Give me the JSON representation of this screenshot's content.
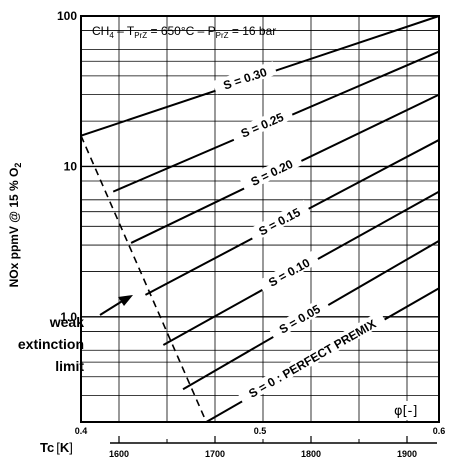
{
  "chart_data": {
    "type": "line",
    "title": "CH₄ – T_PrZ = 650°C – P_PrZ = 16 bar",
    "title_parts": {
      "ch4": "CH",
      "ch4_sub": "4",
      "t": " – T",
      "t_sub": "PrZ",
      "t_val": " = 650°C – P",
      "p_sub": "PrZ",
      "p_val": " = 16 bar"
    },
    "ylabel": "NOx ppmV @ 15 % O",
    "ylabel_sub": "2",
    "xlabel": "φ[-]",
    "x2label": "Tc",
    "x2label_unit": "K",
    "y_scale": "log",
    "ylim": [
      0.2,
      100
    ],
    "xlim": [
      0.4,
      0.6
    ],
    "grid": true,
    "y_ticks": [
      {
        "value": 1,
        "label": "1.0"
      },
      {
        "value": 10,
        "label": "10"
      },
      {
        "value": 100,
        "label": "100"
      }
    ],
    "x_ticks": [
      {
        "value": 0.4,
        "label": "0.4"
      },
      {
        "value": 0.5,
        "label": "0.5"
      },
      {
        "value": 0.6,
        "label": "0.6"
      }
    ],
    "x2_ticks": [
      {
        "value": 1600,
        "label": "1600"
      },
      {
        "value": 1700,
        "label": "1700"
      },
      {
        "value": 1800,
        "label": "1800"
      },
      {
        "value": 1900,
        "label": "1900"
      }
    ],
    "series": [
      {
        "name": "S = 0.30",
        "x": [
          0.4,
          0.6
        ],
        "y": [
          16,
          100
        ]
      },
      {
        "name": "S = 0.25",
        "x": [
          0.418,
          0.6
        ],
        "y": [
          6.8,
          58
        ]
      },
      {
        "name": "S = 0.20",
        "x": [
          0.428,
          0.6
        ],
        "y": [
          3.1,
          30
        ]
      },
      {
        "name": "S = 0.15",
        "x": [
          0.436,
          0.6
        ],
        "y": [
          1.4,
          15
        ]
      },
      {
        "name": "S = 0.10",
        "x": [
          0.446,
          0.6
        ],
        "y": [
          0.65,
          6.8
        ]
      },
      {
        "name": "S = 0.05",
        "x": [
          0.457,
          0.6
        ],
        "y": [
          0.33,
          3.2
        ]
      },
      {
        "name": "S = 0 : PERFECT PREMIX",
        "x": [
          0.47,
          0.6
        ],
        "y": [
          0.2,
          1.55
        ]
      }
    ],
    "weak_extinction_limit": {
      "x": [
        0.4,
        0.47
      ],
      "y": [
        16,
        0.2
      ],
      "style": "dashed"
    },
    "annotation": [
      "weak",
      "extinction",
      "limit"
    ]
  }
}
